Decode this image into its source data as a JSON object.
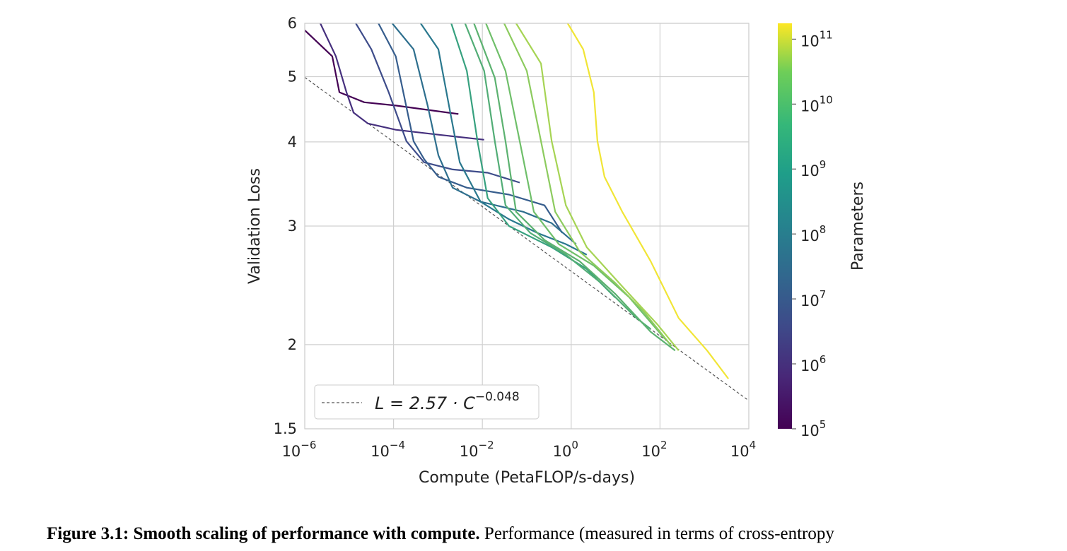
{
  "chart_data": {
    "type": "line",
    "xlabel": "Compute (PetaFLOP/s-days)",
    "ylabel": "Validation Loss",
    "x_scale": "log",
    "y_scale": "log",
    "xlim": [
      1e-06,
      10000.0
    ],
    "ylim": [
      1.5,
      6
    ],
    "grid": true,
    "x_ticks": [
      {
        "base": "10",
        "exp": "−6",
        "v": -6
      },
      {
        "base": "10",
        "exp": "−4",
        "v": -4
      },
      {
        "base": "10",
        "exp": "−2",
        "v": -2
      },
      {
        "base": "10",
        "exp": "0",
        "v": 0
      },
      {
        "base": "10",
        "exp": "2",
        "v": 2
      },
      {
        "base": "10",
        "exp": "4",
        "v": 4
      }
    ],
    "y_ticks": [
      "1.5",
      "2",
      "3",
      "4",
      "5",
      "6"
    ],
    "legend": {
      "placement": "lower-left",
      "lhs": "L = 2.57 · C",
      "exp": "−0.048"
    },
    "frontier": {
      "coef": 2.57,
      "exponent": -0.048,
      "style": "dashed",
      "color": "#555555"
    },
    "colorbar": {
      "label": "Parameters",
      "scale": "log",
      "range": [
        100000.0,
        175000000000.0
      ],
      "ticks": [
        {
          "base": "10",
          "exp": "5",
          "v": 5
        },
        {
          "base": "10",
          "exp": "6",
          "v": 6
        },
        {
          "base": "10",
          "exp": "7",
          "v": 7
        },
        {
          "base": "10",
          "exp": "8",
          "v": 8
        },
        {
          "base": "10",
          "exp": "9",
          "v": 9
        },
        {
          "base": "10",
          "exp": "10",
          "v": 10
        },
        {
          "base": "10",
          "exp": "11",
          "v": 11
        }
      ],
      "colormap": "viridis"
    },
    "series": [
      {
        "color": "#440154",
        "points": [
          [
            -6,
            5.86
          ],
          [
            -5.38,
            5.36
          ],
          [
            -5.22,
            4.74
          ],
          [
            -4.66,
            4.58
          ],
          [
            -3.95,
            4.53
          ],
          [
            -3.31,
            4.47
          ],
          [
            -2.54,
            4.4
          ]
        ]
      },
      {
        "color": "#46307e",
        "points": [
          [
            -5.65,
            6.0
          ],
          [
            -5.3,
            5.36
          ],
          [
            -5.06,
            4.74
          ],
          [
            -4.9,
            4.42
          ],
          [
            -4.58,
            4.26
          ],
          [
            -3.95,
            4.17
          ],
          [
            -2.99,
            4.1
          ],
          [
            -1.96,
            4.03
          ]
        ]
      },
      {
        "color": "#3e4c8a",
        "points": [
          [
            -4.85,
            6.0
          ],
          [
            -4.5,
            5.49
          ],
          [
            -4.11,
            4.74
          ],
          [
            -3.71,
            4.01
          ],
          [
            -3.31,
            3.73
          ],
          [
            -2.67,
            3.64
          ],
          [
            -1.88,
            3.6
          ],
          [
            -1.16,
            3.48
          ]
        ]
      },
      {
        "color": "#365d8d",
        "points": [
          [
            -4.34,
            6.0
          ],
          [
            -3.95,
            5.36
          ],
          [
            -3.55,
            4.01
          ],
          [
            -3.31,
            3.77
          ],
          [
            -2.99,
            3.55
          ],
          [
            -2.35,
            3.42
          ],
          [
            -1.4,
            3.34
          ],
          [
            -0.6,
            3.22
          ],
          [
            -0.2,
            2.93
          ]
        ]
      },
      {
        "color": "#2e6f8e",
        "points": [
          [
            -4.03,
            6.0
          ],
          [
            -3.55,
            5.49
          ],
          [
            -3.23,
            4.52
          ],
          [
            -2.99,
            3.82
          ],
          [
            -2.67,
            3.42
          ],
          [
            -2.04,
            3.26
          ],
          [
            -1.08,
            3.15
          ],
          [
            -0.44,
            3.03
          ],
          [
            0.11,
            2.82
          ]
        ]
      },
      {
        "color": "#2a788e",
        "points": [
          [
            -3.39,
            6.0
          ],
          [
            -2.99,
            5.49
          ],
          [
            -2.75,
            4.52
          ],
          [
            -2.51,
            3.73
          ],
          [
            -2.04,
            3.26
          ],
          [
            -1.4,
            3.07
          ],
          [
            -0.76,
            2.93
          ],
          [
            -0.12,
            2.82
          ],
          [
            0.35,
            2.72
          ]
        ]
      },
      {
        "color": "#37a17f",
        "points": [
          [
            -2.7,
            6.0
          ],
          [
            -2.35,
            5.1
          ],
          [
            -2.11,
            4.01
          ],
          [
            -1.88,
            3.3
          ],
          [
            -1.4,
            3.0
          ],
          [
            -0.44,
            2.79
          ],
          [
            0.35,
            2.59
          ],
          [
            0.99,
            2.35
          ]
        ]
      },
      {
        "color": "#52ad76",
        "points": [
          [
            -2.39,
            6.0
          ],
          [
            -1.96,
            5.1
          ],
          [
            -1.72,
            4.01
          ],
          [
            -1.48,
            3.22
          ],
          [
            -0.92,
            2.93
          ],
          [
            -0.12,
            2.72
          ],
          [
            0.67,
            2.47
          ],
          [
            1.47,
            2.19
          ],
          [
            1.79,
            2.11
          ]
        ]
      },
      {
        "color": "#5cb270",
        "points": [
          [
            -2.19,
            6.0
          ],
          [
            -1.72,
            4.98
          ],
          [
            -1.48,
            4.01
          ],
          [
            -1.24,
            3.15
          ],
          [
            -0.6,
            2.86
          ],
          [
            0.19,
            2.66
          ],
          [
            0.99,
            2.38
          ],
          [
            1.79,
            2.09
          ],
          [
            2.34,
            1.96
          ]
        ]
      },
      {
        "color": "#6fbf6a",
        "points": [
          [
            -1.92,
            6.0
          ],
          [
            -1.48,
            5.1
          ],
          [
            -1.16,
            4.01
          ],
          [
            -0.84,
            3.15
          ],
          [
            -0.28,
            2.82
          ],
          [
            0.51,
            2.62
          ],
          [
            1.31,
            2.35
          ],
          [
            2.11,
            2.04
          ]
        ]
      },
      {
        "color": "#8ccb5e",
        "points": [
          [
            -1.51,
            6.0
          ],
          [
            -1.0,
            5.1
          ],
          [
            -0.68,
            4.01
          ],
          [
            -0.36,
            3.15
          ],
          [
            0.19,
            2.75
          ],
          [
            0.99,
            2.47
          ],
          [
            1.63,
            2.24
          ],
          [
            2.26,
            1.99
          ]
        ]
      },
      {
        "color": "#a6d454",
        "points": [
          [
            -1.24,
            6.0
          ],
          [
            -0.68,
            5.23
          ],
          [
            -0.44,
            4.01
          ],
          [
            -0.12,
            3.22
          ],
          [
            0.35,
            2.79
          ],
          [
            1.15,
            2.44
          ],
          [
            1.95,
            2.14
          ],
          [
            2.42,
            1.96
          ]
        ]
      },
      {
        "color": "#f1e536",
        "points": [
          [
            -0.08,
            6.0
          ],
          [
            0.27,
            5.49
          ],
          [
            0.51,
            4.74
          ],
          [
            0.59,
            4.01
          ],
          [
            0.75,
            3.55
          ],
          [
            1.15,
            3.15
          ],
          [
            1.79,
            2.66
          ],
          [
            2.42,
            2.19
          ],
          [
            3.06,
            1.96
          ],
          [
            3.54,
            1.78
          ]
        ]
      }
    ]
  },
  "caption": {
    "label": "Figure 3.1:",
    "bold_title": "Smooth scaling of performance with compute.",
    "text": "Performance (measured in terms of cross-entropy"
  }
}
